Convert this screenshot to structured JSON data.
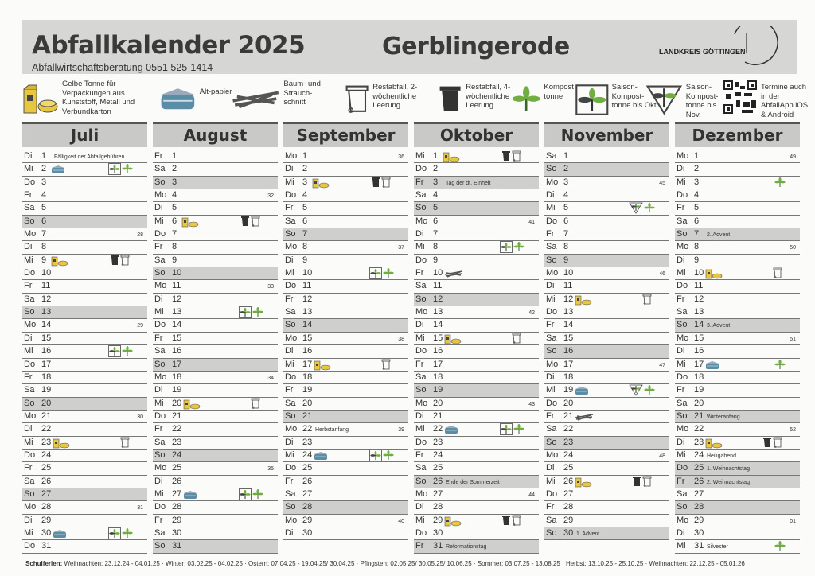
{
  "header": {
    "title": "Abfallkalender 2025",
    "subtitle": "Abfallwirtschaftsberatung 0551 525-1414",
    "town": "Gerblingerode",
    "logo": "LANDKREIS GÖTTINGEN"
  },
  "legend": [
    {
      "icon": "yellow",
      "label": "Gelbe Tonne für Verpackungen aus Kunststoff, Metall und Verbundkarton"
    },
    {
      "icon": "paper",
      "label": "Alt-papier"
    },
    {
      "icon": "green",
      "label": "Baum- und Strauch-schnitt"
    },
    {
      "icon": "rest2",
      "label": "Restabfall, 2-wöchentliche Leerung"
    },
    {
      "icon": "rest4",
      "label": "Restabfall, 4-wöchentliche Leerung"
    },
    {
      "icon": "compost",
      "label": "Kompost tonne"
    },
    {
      "icon": "saisonokt",
      "label": "Saison-Kompost-tonne bis Okt."
    },
    {
      "icon": "saisonnov",
      "label": "Saison-Kompost-tonne bis Nov."
    },
    {
      "icon": "qr",
      "label": "Termine auch in der AbfallApp iOS & Android"
    }
  ],
  "colors": {
    "gray_row": "#cfcfcd",
    "header_bg": "#d6d6d4",
    "compost_green": "#6fae3f",
    "paper_blue": "#5b8ea6",
    "yellow": "#e8c640"
  },
  "months": [
    {
      "name": "Juli",
      "days": [
        {
          "wd": "Di",
          "d": "1",
          "note": "Fälligkeit der Abfallgebühren"
        },
        {
          "wd": "Mi",
          "d": "2",
          "icons": [
            "paper",
            "saisonokt",
            "compost"
          ]
        },
        {
          "wd": "Do",
          "d": "3"
        },
        {
          "wd": "Fr",
          "d": "4"
        },
        {
          "wd": "Sa",
          "d": "5"
        },
        {
          "wd": "So",
          "d": "6",
          "gray": true
        },
        {
          "wd": "Mo",
          "d": "7",
          "kw": "28"
        },
        {
          "wd": "Di",
          "d": "8"
        },
        {
          "wd": "Mi",
          "d": "9",
          "icons": [
            "yellow",
            "rest4",
            "rest2"
          ]
        },
        {
          "wd": "Do",
          "d": "10"
        },
        {
          "wd": "Fr",
          "d": "11"
        },
        {
          "wd": "Sa",
          "d": "12"
        },
        {
          "wd": "So",
          "d": "13",
          "gray": true
        },
        {
          "wd": "Mo",
          "d": "14",
          "kw": "29"
        },
        {
          "wd": "Di",
          "d": "15"
        },
        {
          "wd": "Mi",
          "d": "16",
          "icons": [
            "saisonokt",
            "compost"
          ]
        },
        {
          "wd": "Do",
          "d": "17"
        },
        {
          "wd": "Fr",
          "d": "18"
        },
        {
          "wd": "Sa",
          "d": "19"
        },
        {
          "wd": "So",
          "d": "20",
          "gray": true
        },
        {
          "wd": "Mo",
          "d": "21",
          "kw": "30"
        },
        {
          "wd": "Di",
          "d": "22"
        },
        {
          "wd": "Mi",
          "d": "23",
          "icons": [
            "yellow",
            "rest2"
          ]
        },
        {
          "wd": "Do",
          "d": "24"
        },
        {
          "wd": "Fr",
          "d": "25"
        },
        {
          "wd": "Sa",
          "d": "26"
        },
        {
          "wd": "So",
          "d": "27",
          "gray": true
        },
        {
          "wd": "Mo",
          "d": "28",
          "kw": "31"
        },
        {
          "wd": "Di",
          "d": "29"
        },
        {
          "wd": "Mi",
          "d": "30",
          "icons": [
            "paper",
            "saisonokt",
            "compost"
          ]
        },
        {
          "wd": "Do",
          "d": "31"
        }
      ]
    },
    {
      "name": "August",
      "days": [
        {
          "wd": "Fr",
          "d": "1"
        },
        {
          "wd": "Sa",
          "d": "2"
        },
        {
          "wd": "So",
          "d": "3",
          "gray": true
        },
        {
          "wd": "Mo",
          "d": "4",
          "kw": "32"
        },
        {
          "wd": "Di",
          "d": "5"
        },
        {
          "wd": "Mi",
          "d": "6",
          "icons": [
            "yellow",
            "rest4",
            "rest2"
          ]
        },
        {
          "wd": "Do",
          "d": "7"
        },
        {
          "wd": "Fr",
          "d": "8"
        },
        {
          "wd": "Sa",
          "d": "9"
        },
        {
          "wd": "So",
          "d": "10",
          "gray": true
        },
        {
          "wd": "Mo",
          "d": "11",
          "kw": "33"
        },
        {
          "wd": "Di",
          "d": "12"
        },
        {
          "wd": "Mi",
          "d": "13",
          "icons": [
            "saisonokt",
            "compost"
          ]
        },
        {
          "wd": "Do",
          "d": "14"
        },
        {
          "wd": "Fr",
          "d": "15"
        },
        {
          "wd": "Sa",
          "d": "16"
        },
        {
          "wd": "So",
          "d": "17",
          "gray": true
        },
        {
          "wd": "Mo",
          "d": "18",
          "kw": "34"
        },
        {
          "wd": "Di",
          "d": "19"
        },
        {
          "wd": "Mi",
          "d": "20",
          "icons": [
            "yellow",
            "rest2"
          ]
        },
        {
          "wd": "Do",
          "d": "21"
        },
        {
          "wd": "Fr",
          "d": "22"
        },
        {
          "wd": "Sa",
          "d": "23"
        },
        {
          "wd": "So",
          "d": "24",
          "gray": true
        },
        {
          "wd": "Mo",
          "d": "25",
          "kw": "35"
        },
        {
          "wd": "Di",
          "d": "26"
        },
        {
          "wd": "Mi",
          "d": "27",
          "icons": [
            "paper",
            "saisonokt",
            "compost"
          ]
        },
        {
          "wd": "Do",
          "d": "28"
        },
        {
          "wd": "Fr",
          "d": "29"
        },
        {
          "wd": "Sa",
          "d": "30"
        },
        {
          "wd": "So",
          "d": "31",
          "gray": true
        }
      ]
    },
    {
      "name": "September",
      "days": [
        {
          "wd": "Mo",
          "d": "1",
          "kw": "36"
        },
        {
          "wd": "Di",
          "d": "2"
        },
        {
          "wd": "Mi",
          "d": "3",
          "icons": [
            "yellow",
            "rest4",
            "rest2"
          ]
        },
        {
          "wd": "Do",
          "d": "4"
        },
        {
          "wd": "Fr",
          "d": "5"
        },
        {
          "wd": "Sa",
          "d": "6"
        },
        {
          "wd": "So",
          "d": "7",
          "gray": true
        },
        {
          "wd": "Mo",
          "d": "8",
          "kw": "37"
        },
        {
          "wd": "Di",
          "d": "9"
        },
        {
          "wd": "Mi",
          "d": "10",
          "icons": [
            "saisonokt",
            "compost"
          ]
        },
        {
          "wd": "Do",
          "d": "11"
        },
        {
          "wd": "Fr",
          "d": "12"
        },
        {
          "wd": "Sa",
          "d": "13"
        },
        {
          "wd": "So",
          "d": "14",
          "gray": true
        },
        {
          "wd": "Mo",
          "d": "15",
          "kw": "38"
        },
        {
          "wd": "Di",
          "d": "16"
        },
        {
          "wd": "Mi",
          "d": "17",
          "icons": [
            "yellow",
            "rest2"
          ]
        },
        {
          "wd": "Do",
          "d": "18"
        },
        {
          "wd": "Fr",
          "d": "19"
        },
        {
          "wd": "Sa",
          "d": "20"
        },
        {
          "wd": "So",
          "d": "21",
          "gray": true
        },
        {
          "wd": "Mo",
          "d": "22",
          "kw": "39",
          "note": "Herbstanfang"
        },
        {
          "wd": "Di",
          "d": "23"
        },
        {
          "wd": "Mi",
          "d": "24",
          "icons": [
            "paper",
            "saisonokt",
            "compost"
          ]
        },
        {
          "wd": "Do",
          "d": "25"
        },
        {
          "wd": "Fr",
          "d": "26"
        },
        {
          "wd": "Sa",
          "d": "27"
        },
        {
          "wd": "So",
          "d": "28",
          "gray": true
        },
        {
          "wd": "Mo",
          "d": "29",
          "kw": "40"
        },
        {
          "wd": "Di",
          "d": "30"
        }
      ]
    },
    {
      "name": "Oktober",
      "days": [
        {
          "wd": "Mi",
          "d": "1",
          "icons": [
            "yellow",
            "rest4",
            "rest2"
          ]
        },
        {
          "wd": "Do",
          "d": "2"
        },
        {
          "wd": "Fr",
          "d": "3",
          "gray": true,
          "note": "Tag der dt. Einheit"
        },
        {
          "wd": "Sa",
          "d": "4"
        },
        {
          "wd": "So",
          "d": "5",
          "gray": true
        },
        {
          "wd": "Mo",
          "d": "6",
          "kw": "41"
        },
        {
          "wd": "Di",
          "d": "7"
        },
        {
          "wd": "Mi",
          "d": "8",
          "icons": [
            "saisonokt",
            "compost"
          ]
        },
        {
          "wd": "Do",
          "d": "9"
        },
        {
          "wd": "Fr",
          "d": "10",
          "icons": [
            "green"
          ]
        },
        {
          "wd": "Sa",
          "d": "11"
        },
        {
          "wd": "So",
          "d": "12",
          "gray": true
        },
        {
          "wd": "Mo",
          "d": "13",
          "kw": "42"
        },
        {
          "wd": "Di",
          "d": "14"
        },
        {
          "wd": "Mi",
          "d": "15",
          "icons": [
            "yellow",
            "rest2"
          ]
        },
        {
          "wd": "Do",
          "d": "16"
        },
        {
          "wd": "Fr",
          "d": "17"
        },
        {
          "wd": "Sa",
          "d": "18"
        },
        {
          "wd": "So",
          "d": "19",
          "gray": true
        },
        {
          "wd": "Mo",
          "d": "20",
          "kw": "43"
        },
        {
          "wd": "Di",
          "d": "21"
        },
        {
          "wd": "Mi",
          "d": "22",
          "icons": [
            "paper",
            "saisonokt",
            "compost"
          ]
        },
        {
          "wd": "Do",
          "d": "23"
        },
        {
          "wd": "Fr",
          "d": "24"
        },
        {
          "wd": "Sa",
          "d": "25"
        },
        {
          "wd": "So",
          "d": "26",
          "gray": true,
          "note": "Ende der Sommerzeit"
        },
        {
          "wd": "Mo",
          "d": "27",
          "kw": "44"
        },
        {
          "wd": "Di",
          "d": "28"
        },
        {
          "wd": "Mi",
          "d": "29",
          "icons": [
            "yellow",
            "rest4",
            "rest2"
          ]
        },
        {
          "wd": "Do",
          "d": "30"
        },
        {
          "wd": "Fr",
          "d": "31",
          "gray": true,
          "note": "Reformationstag"
        }
      ]
    },
    {
      "name": "November",
      "days": [
        {
          "wd": "Sa",
          "d": "1"
        },
        {
          "wd": "So",
          "d": "2",
          "gray": true
        },
        {
          "wd": "Mo",
          "d": "3",
          "kw": "45"
        },
        {
          "wd": "Di",
          "d": "4"
        },
        {
          "wd": "Mi",
          "d": "5",
          "icons": [
            "saisonnov",
            "compost"
          ]
        },
        {
          "wd": "Do",
          "d": "6"
        },
        {
          "wd": "Fr",
          "d": "7"
        },
        {
          "wd": "Sa",
          "d": "8"
        },
        {
          "wd": "So",
          "d": "9",
          "gray": true
        },
        {
          "wd": "Mo",
          "d": "10",
          "kw": "46"
        },
        {
          "wd": "Di",
          "d": "11"
        },
        {
          "wd": "Mi",
          "d": "12",
          "icons": [
            "yellow",
            "rest2"
          ]
        },
        {
          "wd": "Do",
          "d": "13"
        },
        {
          "wd": "Fr",
          "d": "14"
        },
        {
          "wd": "Sa",
          "d": "15"
        },
        {
          "wd": "So",
          "d": "16",
          "gray": true
        },
        {
          "wd": "Mo",
          "d": "17",
          "kw": "47"
        },
        {
          "wd": "Di",
          "d": "18"
        },
        {
          "wd": "Mi",
          "d": "19",
          "icons": [
            "paper",
            "saisonnov",
            "compost"
          ]
        },
        {
          "wd": "Do",
          "d": "20"
        },
        {
          "wd": "Fr",
          "d": "21",
          "icons": [
            "green"
          ]
        },
        {
          "wd": "Sa",
          "d": "22"
        },
        {
          "wd": "So",
          "d": "23",
          "gray": true
        },
        {
          "wd": "Mo",
          "d": "24",
          "kw": "48"
        },
        {
          "wd": "Di",
          "d": "25"
        },
        {
          "wd": "Mi",
          "d": "26",
          "icons": [
            "yellow",
            "rest4",
            "rest2"
          ]
        },
        {
          "wd": "Do",
          "d": "27"
        },
        {
          "wd": "Fr",
          "d": "28"
        },
        {
          "wd": "Sa",
          "d": "29"
        },
        {
          "wd": "So",
          "d": "30",
          "gray": true,
          "note": "1. Advent"
        }
      ]
    },
    {
      "name": "Dezember",
      "days": [
        {
          "wd": "Mo",
          "d": "1",
          "kw": "49"
        },
        {
          "wd": "Di",
          "d": "2"
        },
        {
          "wd": "Mi",
          "d": "3",
          "icons": [
            "compost"
          ]
        },
        {
          "wd": "Do",
          "d": "4"
        },
        {
          "wd": "Fr",
          "d": "5"
        },
        {
          "wd": "Sa",
          "d": "6"
        },
        {
          "wd": "So",
          "d": "7",
          "gray": true,
          "note": "2. Advent"
        },
        {
          "wd": "Mo",
          "d": "8",
          "kw": "50"
        },
        {
          "wd": "Di",
          "d": "9"
        },
        {
          "wd": "Mi",
          "d": "10",
          "icons": [
            "yellow",
            "rest2"
          ]
        },
        {
          "wd": "Do",
          "d": "11"
        },
        {
          "wd": "Fr",
          "d": "12"
        },
        {
          "wd": "Sa",
          "d": "13"
        },
        {
          "wd": "So",
          "d": "14",
          "gray": true,
          "note": "3. Advent"
        },
        {
          "wd": "Mo",
          "d": "15",
          "kw": "51"
        },
        {
          "wd": "Di",
          "d": "16"
        },
        {
          "wd": "Mi",
          "d": "17",
          "icons": [
            "paper",
            "compost"
          ]
        },
        {
          "wd": "Do",
          "d": "18"
        },
        {
          "wd": "Fr",
          "d": "19"
        },
        {
          "wd": "Sa",
          "d": "20"
        },
        {
          "wd": "So",
          "d": "21",
          "gray": true,
          "note": "Winteranfang"
        },
        {
          "wd": "Mo",
          "d": "22",
          "kw": "52"
        },
        {
          "wd": "Di",
          "d": "23",
          "icons": [
            "yellow",
            "rest4",
            "rest2"
          ]
        },
        {
          "wd": "Mi",
          "d": "24",
          "note": "Heiligabend"
        },
        {
          "wd": "Do",
          "d": "25",
          "gray": true,
          "note": "1. Weihnachtstag"
        },
        {
          "wd": "Fr",
          "d": "26",
          "gray": true,
          "note": "2. Weihnachtstag"
        },
        {
          "wd": "Sa",
          "d": "27"
        },
        {
          "wd": "So",
          "d": "28",
          "gray": true
        },
        {
          "wd": "Mo",
          "d": "29",
          "kw": "01"
        },
        {
          "wd": "Di",
          "d": "30"
        },
        {
          "wd": "Mi",
          "d": "31",
          "note": "Silvester",
          "icons": [
            "compost"
          ]
        }
      ]
    }
  ],
  "footer": {
    "label": "Schulferien:",
    "text": "Weihnachten: 23.12.24 - 04.01.25 · Winter: 03.02.25 - 04.02.25 · Ostern: 07.04.25 - 19.04.25/ 30.04.25 · Pfingsten: 02.05.25/ 30.05.25/ 10.06.25 · Sommer: 03.07.25 - 13.08.25 · Herbst: 13.10.25 - 25.10.25 · Weihnachten: 22.12.25 - 05.01.26"
  }
}
